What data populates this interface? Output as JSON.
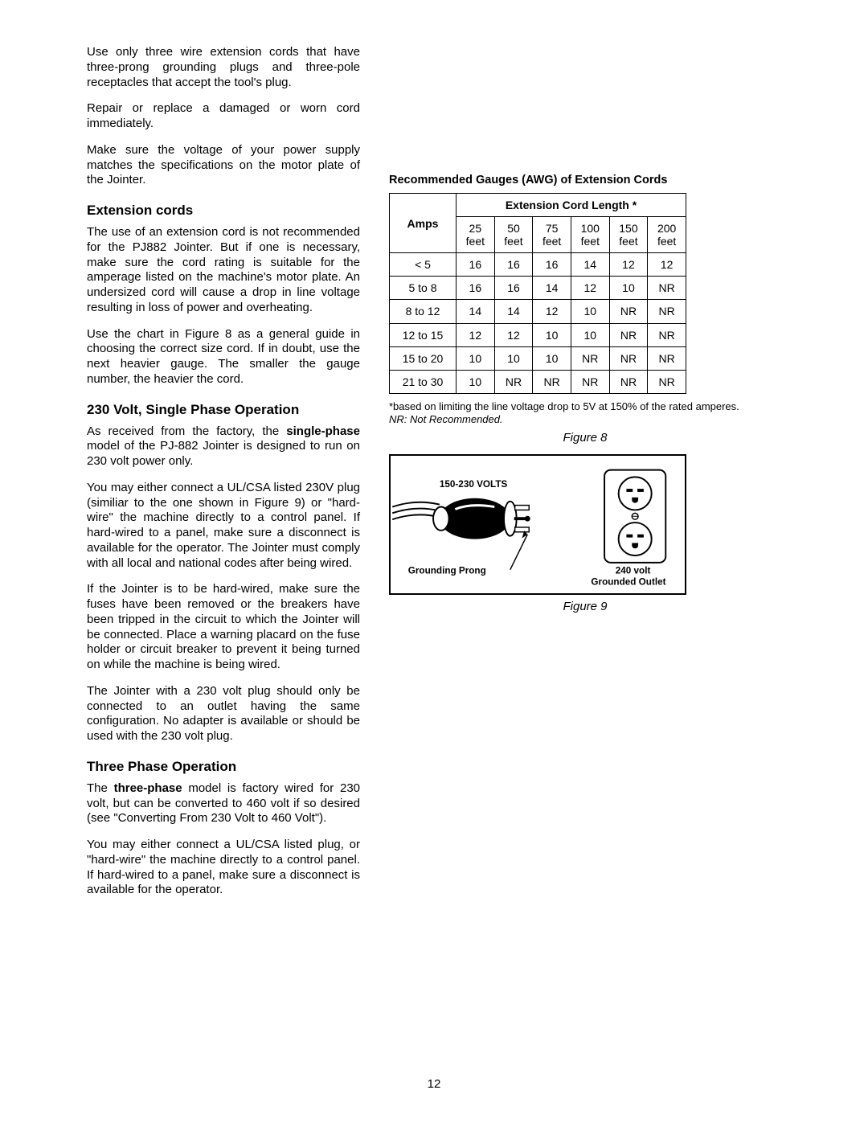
{
  "left": {
    "p1": "Use only three wire extension cords that have three-prong grounding plugs and three-pole receptacles that accept the tool's plug.",
    "p2": "Repair or replace a damaged or worn cord immediately.",
    "p3": "Make sure the voltage of your power supply matches the specifications on the motor plate of the Jointer.",
    "h_ext": "Extension cords",
    "p4": "The use of an extension cord is not recommended for the PJ882 Jointer. But if one is necessary, make sure the cord rating is suitable for the amperage listed on the machine's motor plate. An undersized cord will cause a drop in line voltage resulting in loss of power and overheating.",
    "p5": "Use the chart in Figure 8 as a general guide in choosing the correct size cord. If in doubt, use the next heavier gauge. The smaller the gauge number, the heavier the cord.",
    "h_230": "230 Volt, Single Phase Operation",
    "p6a": "As received from the factory, the ",
    "p6b": "single-phase",
    "p6c": " model of the PJ-882 Jointer is designed to run on 230 volt power only.",
    "p7": "You may either connect a UL/CSA listed 230V plug (similiar to the one shown in Figure 9) or \"hard-wire\" the machine directly to a control panel. If hard-wired to a panel, make sure a disconnect is available for the operator. The Jointer must comply with all local and national codes after being wired.",
    "p8": "If the Jointer is to be hard-wired, make sure the fuses have been removed or the breakers have been tripped in the circuit to which the Jointer will be connected. Place a warning placard on the fuse holder or circuit breaker to prevent it being turned on while the machine is being wired.",
    "p9": "The Jointer with a 230 volt plug should only be connected to an outlet having the same configuration. No adapter is available or should be used with the 230 volt plug.",
    "h_3ph": "Three Phase Operation",
    "p10a": "The ",
    "p10b": "three-phase",
    "p10c": " model is factory wired for 230 volt, but can be converted to 460 volt if so desired (see \"Converting From 230 Volt to 460 Volt\").",
    "p11": "You may either connect a UL/CSA listed plug, or \"hard-wire\" the machine directly to a control panel. If hard-wired to a panel, make sure a disconnect is available for the operator."
  },
  "right": {
    "table_title": "Recommended Gauges (AWG) of Extension Cords",
    "header_amps": "Amps",
    "header_len": "Extension Cord Length *",
    "lengths": [
      "25\nfeet",
      "50\nfeet",
      "75\nfeet",
      "100\nfeet",
      "150\nfeet",
      "200\nfeet"
    ],
    "rows": [
      {
        "amps": "< 5",
        "v": [
          "16",
          "16",
          "16",
          "14",
          "12",
          "12"
        ]
      },
      {
        "amps": "5 to 8",
        "v": [
          "16",
          "16",
          "14",
          "12",
          "10",
          "NR"
        ]
      },
      {
        "amps": "8 to 12",
        "v": [
          "14",
          "14",
          "12",
          "10",
          "NR",
          "NR"
        ]
      },
      {
        "amps": "12 to 15",
        "v": [
          "12",
          "12",
          "10",
          "10",
          "NR",
          "NR"
        ]
      },
      {
        "amps": "15 to 20",
        "v": [
          "10",
          "10",
          "10",
          "NR",
          "NR",
          "NR"
        ]
      },
      {
        "amps": "21 to 30",
        "v": [
          "10",
          "NR",
          "NR",
          "NR",
          "NR",
          "NR"
        ]
      }
    ],
    "footnote_a": "*based on limiting the line voltage drop to 5V at 150% of the rated amperes.",
    "footnote_b": "NR: Not Recommended.",
    "fig8": "Figure 8",
    "fig9": "Figure 9",
    "fig9_labels": {
      "volts": "150-230 VOLTS",
      "ground": "Grounding Prong",
      "outlet1": "240 volt",
      "outlet2": "Grounded Outlet"
    }
  },
  "page_number": "12"
}
